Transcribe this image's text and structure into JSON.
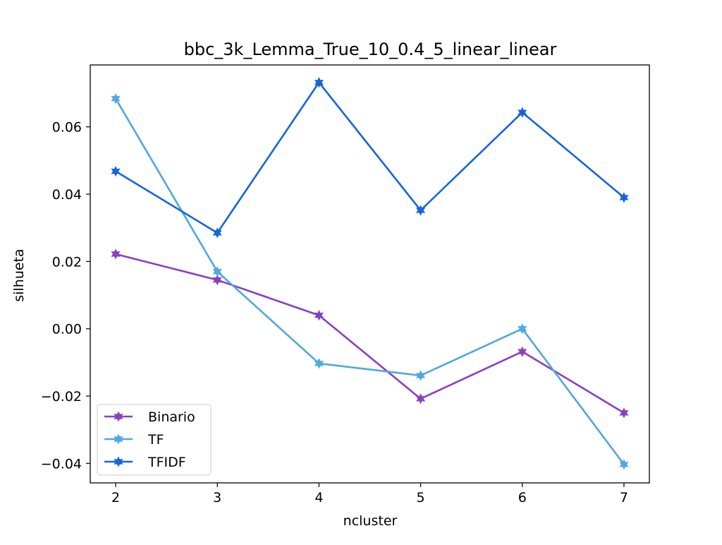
{
  "chart_data": {
    "type": "line",
    "title": "bbc_3k_Lemma_True_10_0.4_5_linear_linear",
    "xlabel": "ncluster",
    "ylabel": "silhueta",
    "x": [
      2,
      3,
      4,
      5,
      6,
      7
    ],
    "xlim": [
      1.75,
      7.25
    ],
    "ylim": [
      -0.0458,
      0.0784
    ],
    "xticks": [
      2,
      3,
      4,
      5,
      6,
      7
    ],
    "xtick_labels": [
      "2",
      "3",
      "4",
      "5",
      "6",
      "7"
    ],
    "yticks": [
      -0.04,
      -0.02,
      0.0,
      0.02,
      0.04,
      0.06
    ],
    "ytick_labels": [
      "−0.04",
      "−0.02",
      "0.00",
      "0.02",
      "0.04",
      "0.06"
    ],
    "grid": false,
    "legend_position": "lower-left",
    "marker": "star",
    "series": [
      {
        "name": "Binario",
        "color": "#8a3fc4",
        "values": [
          0.0222,
          0.0145,
          0.004,
          -0.0208,
          -0.0068,
          -0.025
        ]
      },
      {
        "name": "TF",
        "color": "#4fa8e0",
        "values": [
          0.0684,
          0.017,
          -0.0103,
          -0.0139,
          0.0,
          -0.0403
        ]
      },
      {
        "name": "TFIDF",
        "color": "#1565d8",
        "values": [
          0.0468,
          0.0285,
          0.0732,
          0.0352,
          0.0643,
          0.039
        ]
      }
    ]
  }
}
